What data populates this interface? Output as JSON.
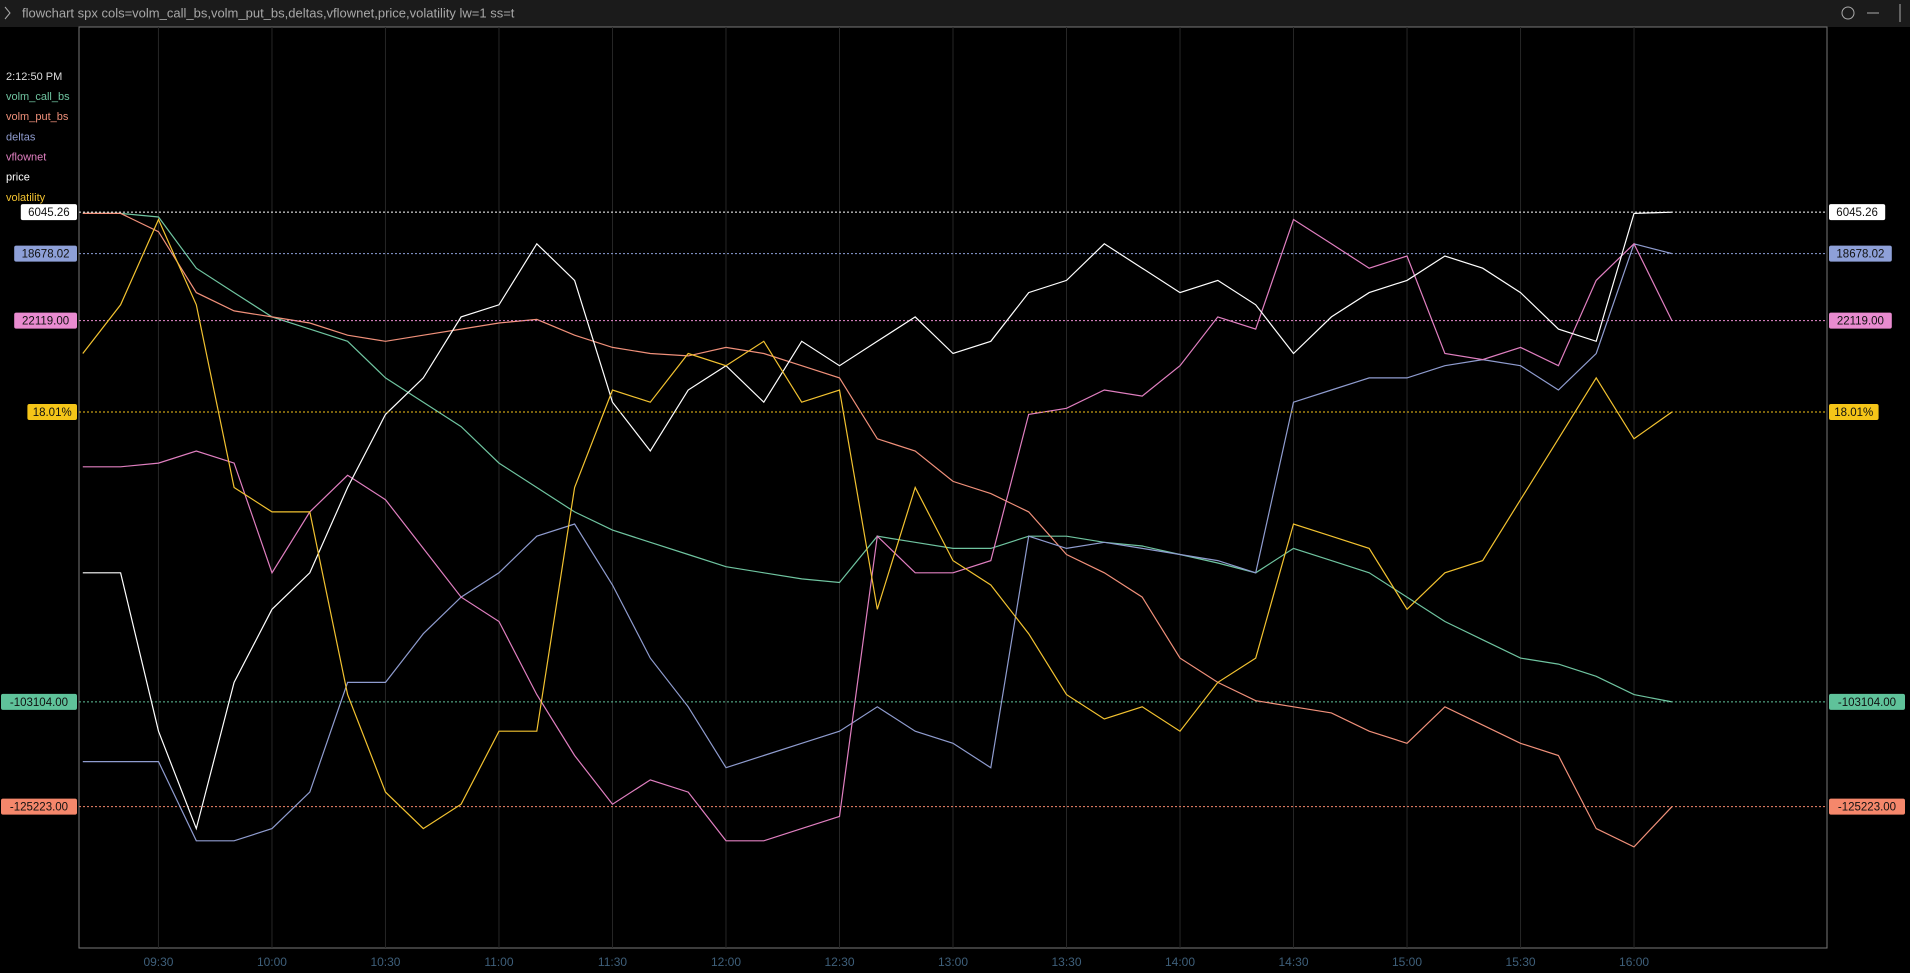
{
  "title": "flowchart spx cols=volm_call_bs,volm_put_bs,deltas,vflownet,price,volatility lw=1 ss=t",
  "chart_data": {
    "type": "line",
    "timestamp": "2:12:50 PM",
    "x": [
      "09:10",
      "09:20",
      "09:30",
      "09:40",
      "09:50",
      "10:00",
      "10:10",
      "10:20",
      "10:30",
      "10:40",
      "10:50",
      "11:00",
      "11:10",
      "11:20",
      "11:30",
      "11:40",
      "11:50",
      "12:00",
      "12:10",
      "12:20",
      "12:30",
      "12:40",
      "12:50",
      "13:00",
      "13:10",
      "13:20",
      "13:30",
      "13:40",
      "13:50",
      "14:00",
      "14:10",
      "14:20",
      "14:30",
      "14:40",
      "14:50",
      "15:00",
      "15:10",
      "15:20",
      "15:30",
      "15:40",
      "15:50",
      "16:00",
      "16:10"
    ],
    "xlim": [
      "09:09",
      "16:51"
    ],
    "xticks": [
      "09:30",
      "10:00",
      "10:30",
      "11:00",
      "11:30",
      "12:00",
      "12:30",
      "13:00",
      "13:30",
      "14:00",
      "14:30",
      "15:00",
      "15:30",
      "16:00"
    ],
    "series": [
      {
        "name": "volm_call_bs",
        "color": "#6fc4a0",
        "label_color": "#5fc29a",
        "value_label": "-103104.00",
        "ylim": [
          -123304,
          -47704
        ],
        "values": [
          -63004,
          -63004,
          -63304,
          -67504,
          -69504,
          -71504,
          -72504,
          -73504,
          -76504,
          -78504,
          -80504,
          -83504,
          -85504,
          -87504,
          -89004,
          -90004,
          -91004,
          -92004,
          -92504,
          -93004,
          -93304,
          -89504,
          -90004,
          -90504,
          -90504,
          -89504,
          -89504,
          -90004,
          -90304,
          -91004,
          -91704,
          -92504,
          -90504,
          -91504,
          -92504,
          -94504,
          -96504,
          -98004,
          -99504,
          -100004,
          -101004,
          -102504,
          -103104
        ]
      },
      {
        "name": "volm_put_bs",
        "color": "#f0907a",
        "label_color": "#f5876b",
        "value_label": "-125223.00",
        "ylim": [
          -136823,
          -61223
        ],
        "values": [
          -76523,
          -76523,
          -78023,
          -83023,
          -84523,
          -85023,
          -85523,
          -86523,
          -87023,
          -86523,
          -86023,
          -85523,
          -85223,
          -86523,
          -87523,
          -88023,
          -88223,
          -87523,
          -88023,
          -89023,
          -90023,
          -95023,
          -96023,
          -98523,
          -99523,
          -101023,
          -104523,
          -106023,
          -108023,
          -113023,
          -115023,
          -116523,
          -117023,
          -117523,
          -119023,
          -120023,
          -117023,
          -118523,
          -120023,
          -121023,
          -127023,
          -128523,
          -125223
        ]
      },
      {
        "name": "deltas",
        "color": "#8f9ccf",
        "label_color": "#8ea0d8",
        "value_label": "18678.02",
        "ylim": [
          -38321.98,
          37278.02
        ],
        "values": [
          -23021.98,
          -23021.98,
          -23021.98,
          -29521.98,
          -29521.98,
          -28521.98,
          -25521.98,
          -16521.98,
          -16521.98,
          -12521.98,
          -9521.98,
          -7521.98,
          -4521.98,
          -3521.98,
          -8521.98,
          -14521.98,
          -18521.98,
          -23521.98,
          -22521.98,
          -21521.98,
          -20521.98,
          -18521.98,
          -20521.98,
          -21521.98,
          -23521.98,
          -4521.98,
          -5521.98,
          -5021.98,
          -5521.98,
          -6021.98,
          -6521.98,
          -7521.98,
          6478.02,
          7478.02,
          8478.02,
          8478.02,
          9478.02,
          9978.02,
          9478.02,
          7478.02,
          10478.02,
          19478.02,
          18678.02
        ]
      },
      {
        "name": "vflownet",
        "color": "#e07fc0",
        "label_color": "#e98bd0",
        "value_label": "22119.00",
        "ylim": [
          -29381,
          46219
        ],
        "values": [
          10119,
          10119,
          10419,
          11419,
          10419,
          1419,
          6419,
          9419,
          7419,
          3419,
          -581,
          -2581,
          -8581,
          -13581,
          -17581,
          -15581,
          -16581,
          -20581,
          -20581,
          -19581,
          -18581,
          4419,
          1419,
          1419,
          2419,
          14419,
          14919,
          16419,
          15919,
          18419,
          22419,
          21419,
          30419,
          28419,
          26419,
          27419,
          19419,
          18919,
          19919,
          18419,
          25419,
          28419,
          22119
        ]
      },
      {
        "name": "price",
        "color": "#ffffff",
        "label_color": "#ffffff",
        "value_label": "6045.26",
        "ylim": [
          5984.86,
          6060.46
        ],
        "values": [
          6015.66,
          6015.66,
          6002.66,
          5994.66,
          6006.66,
          6012.66,
          6015.66,
          6022.66,
          6028.66,
          6031.66,
          6036.66,
          6037.66,
          6042.66,
          6039.66,
          6029.66,
          6025.66,
          6030.66,
          6032.66,
          6029.66,
          6034.66,
          6032.66,
          6034.66,
          6036.66,
          6033.66,
          6034.66,
          6038.66,
          6039.66,
          6042.66,
          6040.66,
          6038.66,
          6039.66,
          6037.66,
          6033.66,
          6036.66,
          6038.66,
          6039.66,
          6041.66,
          6040.66,
          6038.66,
          6035.66,
          6034.66,
          6045.16,
          6045.26
        ]
      },
      {
        "name": "volatility",
        "color": "#f2c230",
        "label_color": "#f5c518",
        "value_label": "18.01%",
        "ylim": [
          13.61,
          21.17
        ],
        "values": [
          18.49,
          18.89,
          19.59,
          18.89,
          17.39,
          17.19,
          17.19,
          15.69,
          14.89,
          14.59,
          14.79,
          15.39,
          15.39,
          17.39,
          18.19,
          18.09,
          18.49,
          18.39,
          18.59,
          18.09,
          18.19,
          16.39,
          17.39,
          16.79,
          16.59,
          16.19,
          15.69,
          15.49,
          15.59,
          15.39,
          15.79,
          15.99,
          17.09,
          16.99,
          16.89,
          16.39,
          16.69,
          16.79,
          17.29,
          17.79,
          18.29,
          17.79,
          18.01
        ]
      }
    ]
  }
}
